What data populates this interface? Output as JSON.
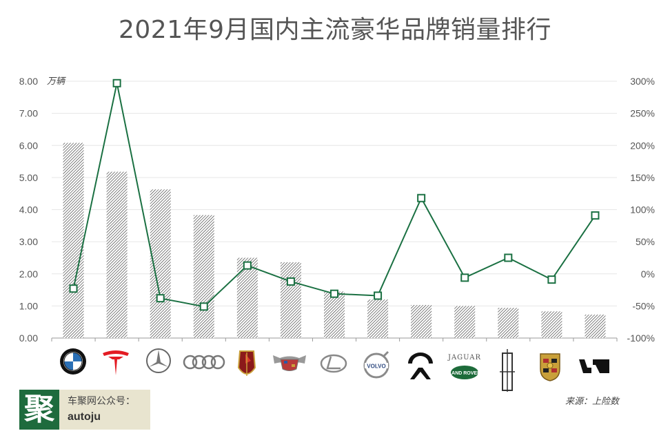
{
  "chart_data": {
    "type": "bar",
    "title": "2021年9月国内主流豪华品牌销量排行",
    "unit_label": "万辆",
    "categories": [
      "BMW",
      "Tesla",
      "Mercedes-Benz",
      "Audi",
      "Hongqi",
      "Cadillac",
      "Lexus",
      "Volvo",
      "NIO",
      "Jaguar Land Rover",
      "Lincoln",
      "Porsche",
      "Li Auto"
    ],
    "series": [
      {
        "type": "bar",
        "axis": "left",
        "values": [
          6.08,
          5.18,
          4.63,
          3.83,
          2.5,
          2.36,
          1.45,
          1.2,
          1.03,
          1.0,
          0.94,
          0.83,
          0.73
        ]
      },
      {
        "type": "line",
        "axis": "right",
        "values": [
          -23,
          297,
          -38,
          -51,
          13,
          -12,
          -31,
          -34,
          118,
          -6,
          25,
          -9,
          91
        ]
      }
    ],
    "y_left": {
      "min": 0,
      "max": 8,
      "ticks": [
        "8.00",
        "7.00",
        "6.00",
        "5.00",
        "4.00",
        "3.00",
        "2.00",
        "1.00",
        "0.00"
      ]
    },
    "y_right": {
      "min": -100,
      "max": 300,
      "ticks": [
        "300%",
        "250%",
        "200%",
        "150%",
        "100%",
        "50%",
        "0%",
        "-50%",
        "-100%"
      ]
    },
    "grid": true,
    "colors": {
      "line": "#1a7042",
      "bar_hatch": "#333333",
      "bar_fill": "#ffffff",
      "grid": "#e6e6e6",
      "axis": "#999999"
    }
  },
  "footer": {
    "logo_char": "聚",
    "account_label": "车聚网公众号：",
    "account_id": "autoju",
    "source": "来源：上险数"
  },
  "brand_icons": [
    "bmw-logo-icon",
    "tesla-logo-icon",
    "mercedes-logo-icon",
    "audi-logo-icon",
    "hongqi-logo-icon",
    "cadillac-logo-icon",
    "lexus-logo-icon",
    "volvo-logo-icon",
    "nio-logo-icon",
    "jaguar-landrover-logo-icon",
    "lincoln-logo-icon",
    "porsche-logo-icon",
    "li-auto-logo-icon"
  ],
  "brand_icon_text": {
    "jaguar": "JAGUAR",
    "landrover": "LAND ROVER",
    "volvo": "VOLVO"
  }
}
